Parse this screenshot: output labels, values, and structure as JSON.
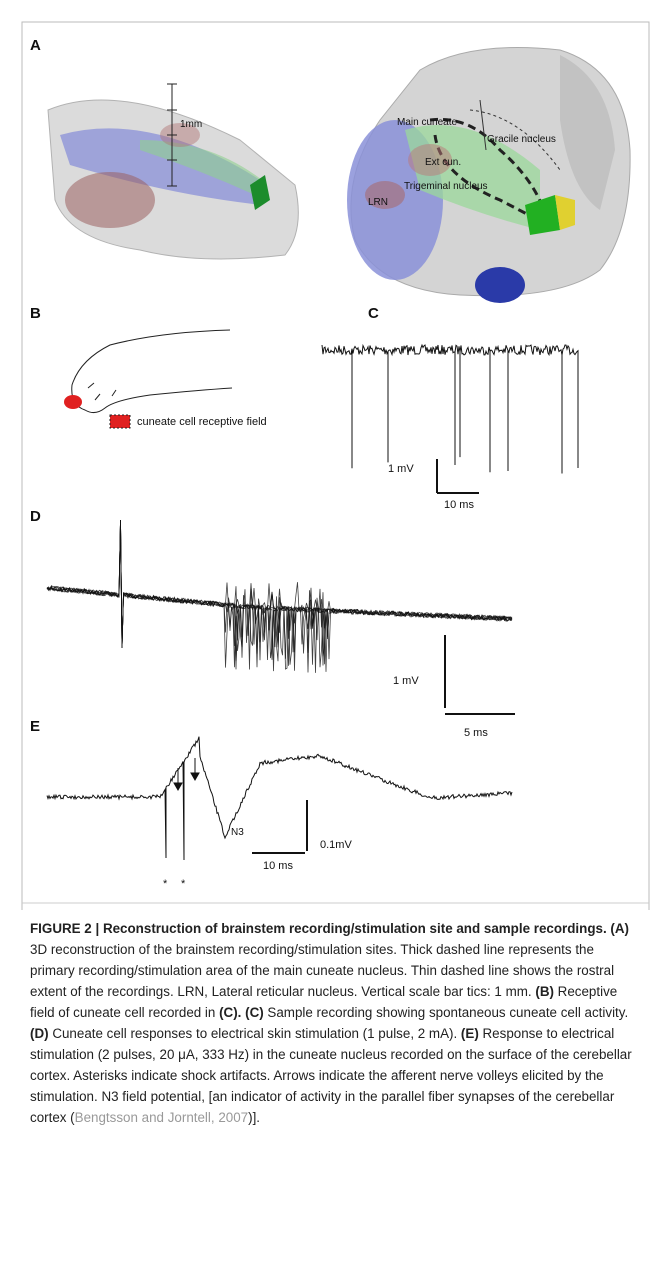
{
  "figure": {
    "panels": [
      "A",
      "B",
      "C",
      "D",
      "E"
    ],
    "panel_a": {
      "scale": "1mm",
      "labels": [
        "Main cuneate",
        "Gracile nucleus",
        "Ext cun.",
        "Trigeminal nucleus",
        "LRN"
      ]
    },
    "panel_b": {
      "legend": "cuneate cell receptive field"
    },
    "panel_c": {
      "scale_y": "1 mV",
      "scale_x": "10 ms"
    },
    "panel_d": {
      "scale_y": "1 mV",
      "scale_x": "5 ms"
    },
    "panel_e": {
      "n3": "N3",
      "scale_y": "0.1mV",
      "scale_x": "10 ms",
      "asterisk": "*"
    }
  },
  "caption": {
    "parts": [
      "FIGURE 2 | Reconstruction of brainstem recording/stimulation site and sample recordings.",
      "(A)",
      " 3D reconstruction of the brainstem recording/stimulation sites. Thick dashed line represents the primary recording/stimulation area of the main cuneate nucleus. Thin dashed line shows the rostral extent of the recordings. LRN, Lateral reticular nucleus. Vertical scale bar tics: 1 mm. ",
      "(B)",
      " Receptive field of cuneate cell recorded in ",
      "(C). (C)",
      " Sample recording showing spontaneous cuneate cell activity. ",
      "(D)",
      " Cuneate cell responses to electrical skin stimulation (1 pulse, 2 mA). ",
      "(E)",
      " Response to electrical stimulation (2 pulses, 20 μA, 333 Hz) in the cuneate nucleus recorded on the surface of the cerebellar cortex. Asterisks indicate shock artifacts. Arrows indicate the afferent nerve volleys elicited by the stimulation. N3 field potential, [an indicator of activity in the parallel fiber synapses of the cerebellar cortex (",
      "Bengtsson and Jorntell, 2007",
      ")]."
    ]
  }
}
